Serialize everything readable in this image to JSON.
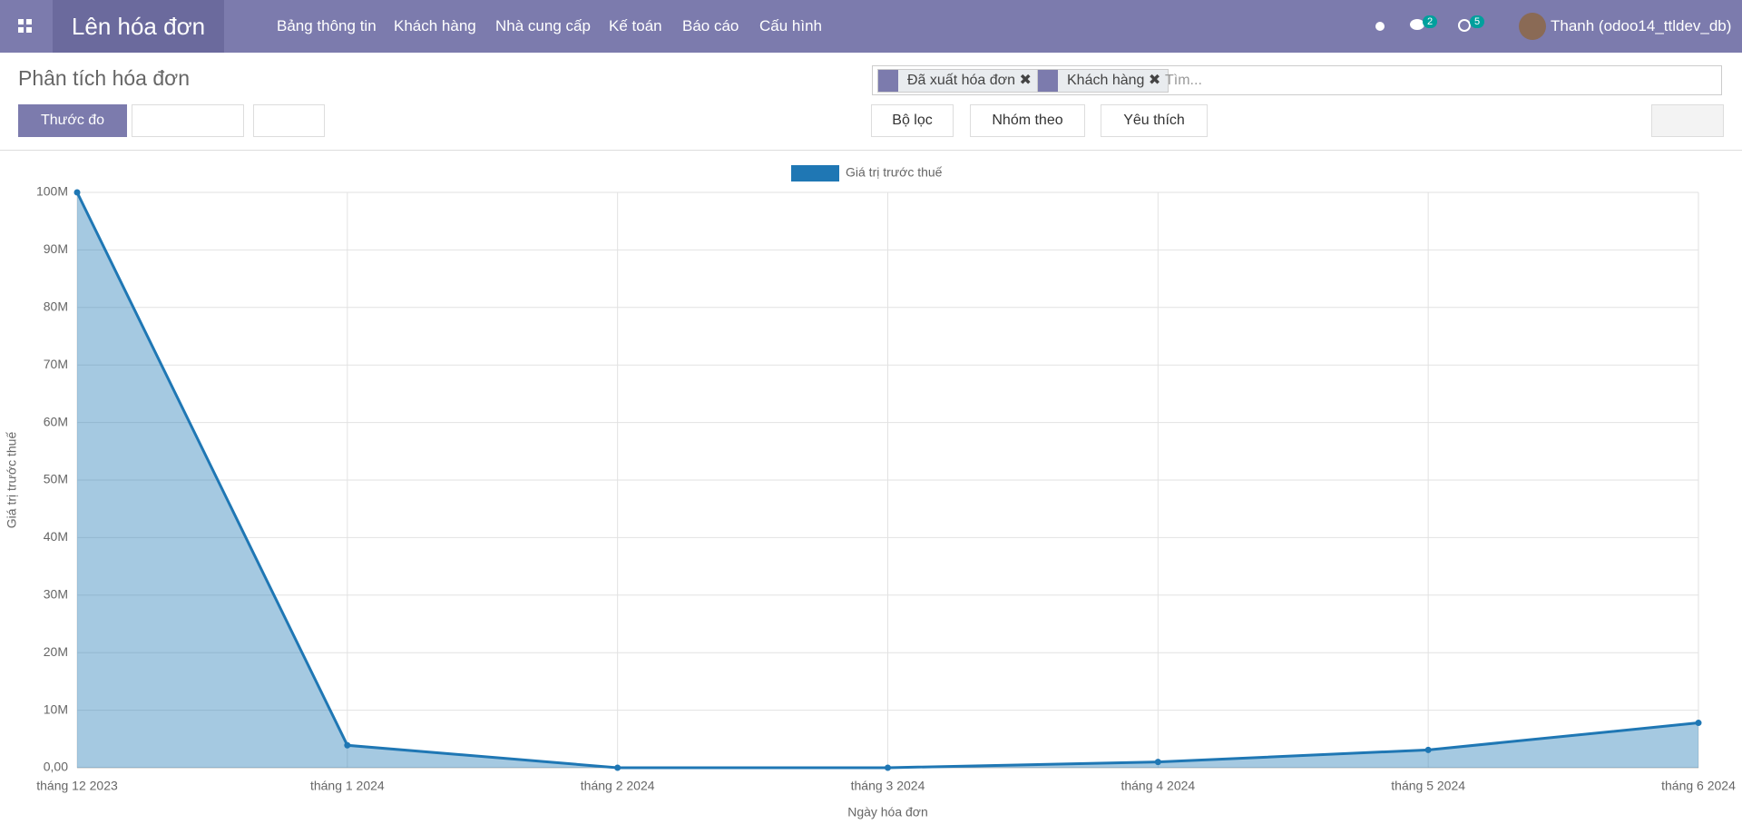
{
  "navbar": {
    "app": "Lên hóa đơn",
    "menus": [
      "Bảng thông tin",
      "Khách hàng",
      "Nhà cung cấp",
      "Kế toán",
      "Báo cáo",
      "Cấu hình"
    ],
    "messages_count": 2,
    "activities_count": 5,
    "user": "Thanh (odoo14_ttldev_db)"
  },
  "control_panel": {
    "title": "Phân tích hóa đơn",
    "measure_button": "Thước đo",
    "facets": [
      "Đã xuất hóa đơn",
      "Khách hàng"
    ],
    "search_placeholder": "Tìm...",
    "filters": "Bộ lọc",
    "group_by": "Nhóm theo",
    "favorites": "Yêu thích"
  },
  "chart_data": {
    "type": "line",
    "area": true,
    "x_label": "Ngày hóa đơn",
    "y_label": "Giá trị trước thuế",
    "categories": [
      "tháng 12 2023",
      "tháng 1 2024",
      "tháng 2 2024",
      "tháng 3 2024",
      "tháng 4 2024",
      "tháng 5 2024",
      "tháng 6 2024"
    ],
    "series": [
      {
        "name": "Giá trị trước thuế",
        "color": "#1f77b4",
        "values": [
          100000000,
          3900000,
          0,
          0,
          1000000,
          3100000,
          7800000
        ]
      }
    ],
    "ylim": [
      0,
      100000000
    ],
    "yticks": [
      {
        "value": 0,
        "label": "0,00"
      },
      {
        "value": 10000000,
        "label": "10M"
      },
      {
        "value": 20000000,
        "label": "20M"
      },
      {
        "value": 30000000,
        "label": "30M"
      },
      {
        "value": 40000000,
        "label": "40M"
      },
      {
        "value": 50000000,
        "label": "50M"
      },
      {
        "value": 60000000,
        "label": "60M"
      },
      {
        "value": 70000000,
        "label": "70M"
      },
      {
        "value": 80000000,
        "label": "80M"
      },
      {
        "value": 90000000,
        "label": "90M"
      },
      {
        "value": 100000000,
        "label": "100M"
      }
    ],
    "grid": true
  }
}
